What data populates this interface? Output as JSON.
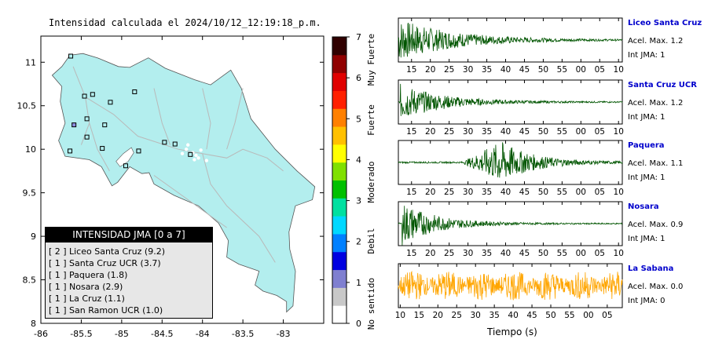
{
  "map": {
    "title": "Intensidad calculada el 2024/10/12_12:19:18_p.m.",
    "x_ticks": [
      "-86",
      "-85.5",
      "-85",
      "-84.5",
      "-84",
      "-83.5",
      "-83"
    ],
    "y_ticks": [
      "11",
      "10.5",
      "10",
      "9.5",
      "9",
      "8.5",
      "8"
    ],
    "xlim": [
      -86,
      -82.5
    ],
    "ylim": [
      8,
      11.3
    ],
    "land_color": "#b3eeee",
    "stations": [
      {
        "lon": -85.63,
        "lat": 11.07,
        "color": "#b3eeee"
      },
      {
        "lon": -85.36,
        "lat": 10.63,
        "color": "#b3eeee"
      },
      {
        "lon": -85.46,
        "lat": 10.61,
        "color": "#b3eeee"
      },
      {
        "lon": -84.84,
        "lat": 10.66,
        "color": "#b3eeee"
      },
      {
        "lon": -85.14,
        "lat": 10.54,
        "color": "#b3eeee"
      },
      {
        "lon": -85.43,
        "lat": 10.35,
        "color": "#b3eeee"
      },
      {
        "lon": -85.59,
        "lat": 10.28,
        "color": "#8c8cde"
      },
      {
        "lon": -85.43,
        "lat": 10.14,
        "color": "#b3eeee"
      },
      {
        "lon": -85.21,
        "lat": 10.28,
        "color": "#b3eeee"
      },
      {
        "lon": -85.24,
        "lat": 10.01,
        "color": "#b3eeee"
      },
      {
        "lon": -85.64,
        "lat": 9.98,
        "color": "#b3eeee"
      },
      {
        "lon": -84.79,
        "lat": 9.98,
        "color": "#b3eeee"
      },
      {
        "lon": -84.47,
        "lat": 10.08,
        "color": "#b3eeee"
      },
      {
        "lon": -84.34,
        "lat": 10.06,
        "color": "#b3eeee"
      },
      {
        "lon": -84.15,
        "lat": 9.94,
        "color": "#b3eeee"
      },
      {
        "lon": -84.95,
        "lat": 9.81,
        "color": "#b3eeee"
      }
    ]
  },
  "legend": {
    "title": "INTENSIDAD JMA [0 a 7]",
    "items": [
      {
        "level": "[ 2 ]",
        "station": "Liceo Santa Cruz (9.2)"
      },
      {
        "level": "[ 1 ]",
        "station": "Santa Cruz UCR (3.7)"
      },
      {
        "level": "[ 1 ]",
        "station": "Paquera (1.8)"
      },
      {
        "level": "[ 1 ]",
        "station": "Nosara (2.9)"
      },
      {
        "level": "[ 1 ]",
        "station": "La Cruz (1.1)"
      },
      {
        "level": "[ 1 ]",
        "station": "San Ramon UCR (1.0)"
      }
    ]
  },
  "scale": {
    "ticks": [
      "0",
      "1",
      "2",
      "3",
      "4",
      "5",
      "6",
      "7"
    ],
    "categories": [
      "No sentido",
      "Debil",
      "Moderado",
      "Fuerte",
      "Muy Fuerte"
    ],
    "colors": [
      "#ffffff",
      "#c8c8c8",
      "#7f7fd0",
      "#0000e0",
      "#0080ff",
      "#00d8ff",
      "#00e0a0",
      "#00c000",
      "#80e000",
      "#ffff00",
      "#ffc000",
      "#ff8000",
      "#ff2000",
      "#e00000",
      "#900000",
      "#300000"
    ]
  },
  "waves": {
    "xlabel": "Tiempo (s)",
    "stations": [
      {
        "name": "Liceo Santa Cruz",
        "accel": "Acel. Max. 1.2",
        "jma": "Int JMA: 1",
        "color": "#005500",
        "ticks": [
          "15",
          "20",
          "25",
          "30",
          "35",
          "40",
          "45",
          "50",
          "55",
          "00",
          "05",
          "10"
        ],
        "tick_start": 15,
        "t0": 11.5,
        "t1": 71,
        "onset": 11.5,
        "peak": 1.0,
        "decay": 0.07,
        "emergent": false
      },
      {
        "name": "Santa Cruz UCR",
        "accel": "Acel. Max. 1.2",
        "jma": "Int JMA: 1",
        "color": "#005500",
        "ticks": [
          "15",
          "20",
          "25",
          "30",
          "35",
          "40",
          "45",
          "50",
          "55",
          "00",
          "05",
          "10"
        ],
        "tick_start": 15,
        "t0": 11.5,
        "t1": 71,
        "onset": 12,
        "peak": 0.85,
        "decay": 0.09,
        "emergent": false
      },
      {
        "name": "Paquera",
        "accel": "Acel. Max. 1.1",
        "jma": "Int JMA: 1",
        "color": "#005500",
        "ticks": [
          "15",
          "20",
          "25",
          "30",
          "35",
          "40",
          "45",
          "50",
          "55",
          "00",
          "05",
          "10"
        ],
        "tick_start": 15,
        "t0": 11.5,
        "t1": 71,
        "onset": 29,
        "peak": 0.95,
        "decay": 0.12,
        "emergent": true
      },
      {
        "name": "Nosara",
        "accel": "Acel. Max. 0.9",
        "jma": "Int JMA: 1",
        "color": "#005500",
        "ticks": [
          "15",
          "20",
          "25",
          "30",
          "35",
          "40",
          "45",
          "50",
          "55",
          "00",
          "05",
          "10"
        ],
        "tick_start": 15,
        "t0": 11.5,
        "t1": 71,
        "onset": 12.5,
        "peak": 1.0,
        "decay": 0.11,
        "emergent": false
      },
      {
        "name": "La Sabana",
        "accel": "Acel. Max. 0.0",
        "jma": "Int JMA: 0",
        "color": "#ffa500",
        "ticks": [
          "10",
          "15",
          "20",
          "25",
          "30",
          "35",
          "40",
          "45",
          "50",
          "55",
          "00",
          "05"
        ],
        "tick_start": 10,
        "t0": 9.5,
        "t1": 69,
        "onset": 9.5,
        "peak": 0.7,
        "decay": 0,
        "emergent": false
      }
    ]
  }
}
